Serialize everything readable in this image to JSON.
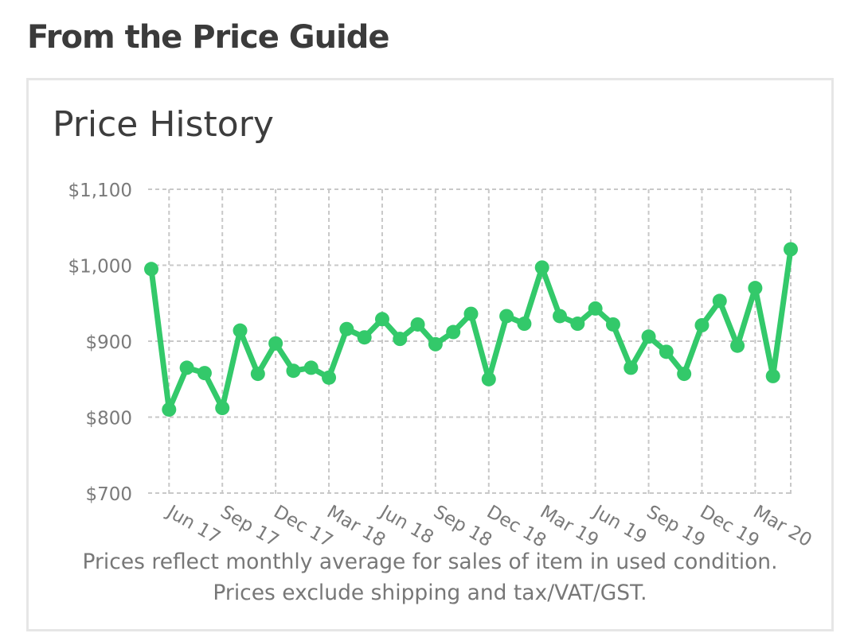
{
  "section_title": "From the Price Guide",
  "card": {
    "title": "Price History",
    "note_line1": "Prices reflect monthly average for sales of item in used condition.",
    "note_line2": "Prices exclude shipping and tax/VAT/GST."
  },
  "colors": {
    "line": "#33c96a",
    "grid": "#c8c8c8",
    "axis_text": "#7a7a7a"
  },
  "chart_data": {
    "type": "line",
    "title": "Price History",
    "xlabel": "",
    "ylabel": "",
    "ylim": [
      700,
      1100
    ],
    "yticks": [
      700,
      800,
      900,
      1000,
      1100
    ],
    "ytick_labels": [
      "$700",
      "$800",
      "$900",
      "$1,000",
      "$1,100"
    ],
    "xtick_labels": [
      "Jun 17",
      "Sep 17",
      "Dec 17",
      "Mar 18",
      "Jun 18",
      "Sep 18",
      "Dec 18",
      "Mar 19",
      "Jun 19",
      "Sep 19",
      "Dec 19",
      "Mar 20"
    ],
    "x": [
      "May 17",
      "Jun 17",
      "Jul 17",
      "Aug 17",
      "Sep 17",
      "Oct 17",
      "Nov 17",
      "Dec 17",
      "Jan 18",
      "Feb 18",
      "Mar 18",
      "Apr 18",
      "May 18",
      "Jun 18",
      "Jul 18",
      "Aug 18",
      "Sep 18",
      "Oct 18",
      "Nov 18",
      "Dec 18",
      "Jan 19",
      "Feb 19",
      "Mar 19",
      "Apr 19",
      "May 19",
      "Jun 19",
      "Jul 19",
      "Aug 19",
      "Sep 19",
      "Oct 19",
      "Nov 19",
      "Dec 19",
      "Jan 20",
      "Feb 20",
      "Mar 20",
      "Apr 20",
      "May 20"
    ],
    "series": [
      {
        "values": [
          995,
          810,
          865,
          858,
          812,
          914,
          857,
          897,
          861,
          865,
          852,
          916,
          905,
          929,
          903,
          922,
          896,
          912,
          936,
          850,
          933,
          923,
          997,
          933,
          923,
          943,
          922,
          865,
          906,
          886,
          857,
          921,
          953,
          894,
          970,
          854,
          1021
        ]
      }
    ],
    "grid": true,
    "legend": "none"
  }
}
